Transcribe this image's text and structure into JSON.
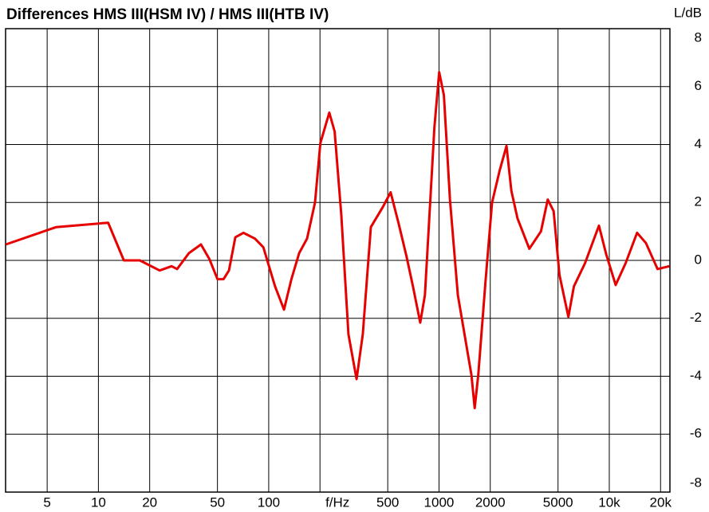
{
  "chart_data": {
    "type": "line",
    "title": "Differences HMS III(HSM IV) / HMS III(HTB IV)",
    "y_label": "L/dB",
    "log_x": true,
    "grid": true,
    "color": "#e60000",
    "xlim": [
      2.85,
      22700
    ],
    "ylim": [
      -8,
      8
    ],
    "xticks": [
      5,
      10,
      20,
      50,
      100,
      {
        "value": 200,
        "label": "f/Hz"
      },
      500,
      1000,
      2000,
      5000,
      {
        "value": 10000,
        "label": "10k"
      },
      {
        "value": 20000,
        "label": "20k"
      }
    ],
    "yticks": [
      -8,
      -6,
      -4,
      -2,
      0,
      2,
      4,
      6,
      8
    ],
    "x": [
      2.86,
      5.65,
      11.4,
      14.1,
      17.5,
      22.9,
      26.9,
      29,
      34,
      40,
      44.8,
      50,
      54.3,
      58.4,
      63.7,
      71,
      83,
      93,
      109,
      123,
      136,
      151,
      168,
      187,
      201,
      227,
      244,
      267,
      294,
      328,
      357,
      398,
      469,
      520,
      578,
      644,
      703,
      776,
      827,
      890,
      940,
      1003,
      1068,
      1160,
      1290,
      1440,
      1550,
      1620,
      1700,
      1880,
      2050,
      2270,
      2490,
      2660,
      2890,
      3390,
      3970,
      4350,
      4710,
      5100,
      5750,
      6200,
      7200,
      8690,
      9600,
      10900,
      12460,
      14560,
      16400,
      19200,
      22500
    ],
    "values": [
      0.55,
      1.15,
      1.3,
      0.0,
      0.0,
      -0.35,
      -0.2,
      -0.3,
      0.25,
      0.55,
      0.05,
      -0.65,
      -0.65,
      -0.35,
      0.8,
      0.95,
      0.75,
      0.45,
      -0.9,
      -1.7,
      -0.65,
      0.25,
      0.75,
      2.0,
      4.05,
      5.1,
      4.45,
      1.55,
      -2.55,
      -4.1,
      -2.55,
      1.15,
      1.85,
      2.35,
      1.3,
      0.15,
      -0.9,
      -2.15,
      -1.2,
      2.1,
      4.6,
      6.5,
      5.7,
      2.1,
      -1.2,
      -2.85,
      -3.95,
      -5.1,
      -3.95,
      -0.65,
      2.0,
      3.1,
      3.95,
      2.4,
      1.45,
      0.4,
      1.0,
      2.1,
      1.7,
      -0.5,
      -1.95,
      -0.9,
      -0.1,
      1.2,
      0.2,
      -0.85,
      -0.1,
      0.95,
      0.6,
      -0.3,
      -0.2
    ]
  }
}
